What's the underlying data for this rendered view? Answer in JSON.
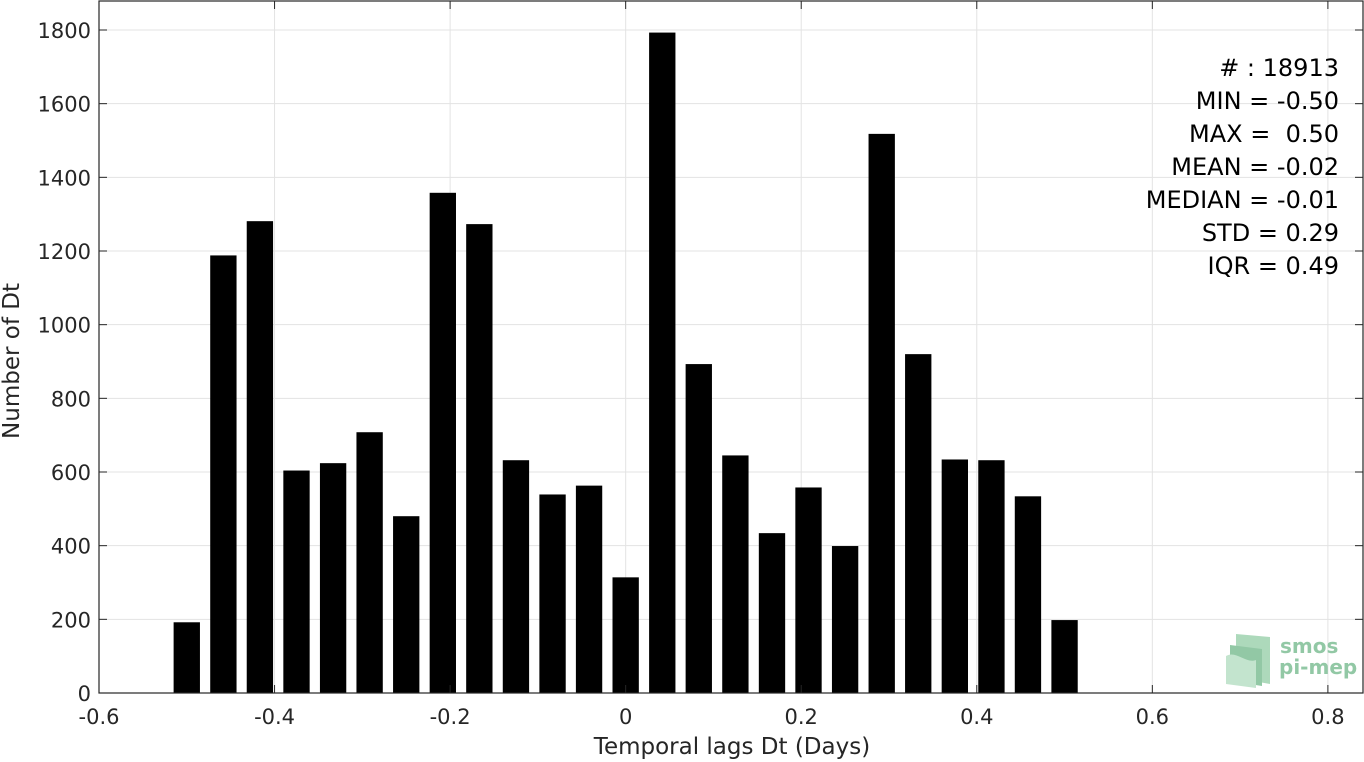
{
  "chart_data": {
    "type": "bar",
    "xlabel": "Temporal lags Dt (Days)",
    "ylabel": "Number of Dt",
    "xlim": [
      -0.6,
      0.84
    ],
    "ylim": [
      0,
      1800
    ],
    "xticks": [
      -0.6,
      -0.4,
      -0.2,
      0,
      0.2,
      0.4,
      0.6,
      0.8
    ],
    "xtick_labels": [
      "-0.6",
      "-0.4",
      "-0.2",
      "0",
      "0.2",
      "0.4",
      "0.6",
      "0.8"
    ],
    "yticks": [
      0,
      200,
      400,
      600,
      800,
      1000,
      1200,
      1400,
      1600,
      1800
    ],
    "ytick_labels": [
      "0",
      "200",
      "400",
      "600",
      "800",
      "1000",
      "1200",
      "1400",
      "1600",
      "1800"
    ],
    "grid": true,
    "bar_color": "#000000",
    "bar_width": 0.03,
    "x": [
      -0.5,
      -0.4583,
      -0.4167,
      -0.375,
      -0.3333,
      -0.2917,
      -0.25,
      -0.2083,
      -0.1667,
      -0.125,
      -0.0833,
      -0.0417,
      0,
      0.0417,
      0.0833,
      0.125,
      0.1667,
      0.2083,
      0.25,
      0.2917,
      0.3333,
      0.375,
      0.4167,
      0.4583,
      0.5
    ],
    "values": [
      192,
      1188,
      1281,
      604,
      624,
      708,
      480,
      1358,
      1273,
      632,
      539,
      563,
      314,
      1793,
      893,
      645,
      434,
      558,
      399,
      1518,
      920,
      634,
      632,
      534,
      198
    ]
  },
  "stats": {
    "lines": [
      "# : 18913",
      "MIN = -0.50",
      "MAX =  0.50",
      "MEAN = -0.02",
      "MEDIAN = -0.01",
      "STD = 0.29",
      "IQR = 0.49"
    ]
  },
  "logo": {
    "line1": "smos",
    "line2": "pi-mep",
    "color": "#7fbf96"
  }
}
